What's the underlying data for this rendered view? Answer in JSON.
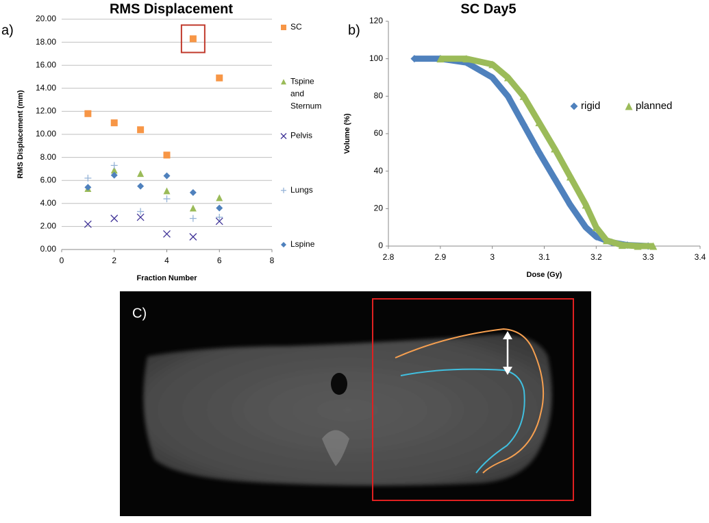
{
  "chart_data": [
    {
      "type": "scatter",
      "panel_label": "a)",
      "title": "RMS Displacement",
      "xlabel": "Fraction Number",
      "ylabel": "RMS Displacement (mm)",
      "x": [
        1,
        2,
        3,
        4,
        5,
        6
      ],
      "xlim": [
        0,
        8
      ],
      "xticks": [
        0,
        2,
        4,
        6,
        8
      ],
      "ylim": [
        0,
        20
      ],
      "yticks": [
        {
          "value": 0,
          "label": "0.00"
        },
        {
          "value": 2,
          "label": "2.00"
        },
        {
          "value": 4,
          "label": "4.00"
        },
        {
          "value": 6,
          "label": "6.00"
        },
        {
          "value": 8,
          "label": "8.00"
        },
        {
          "value": 10,
          "label": "10.00"
        },
        {
          "value": 12,
          "label": "12.00"
        },
        {
          "value": 14,
          "label": "14.00"
        },
        {
          "value": 16,
          "label": "16.00"
        },
        {
          "value": 18,
          "label": "18.00"
        },
        {
          "value": 20,
          "label": "20.00"
        }
      ],
      "grid": true,
      "legend": "right",
      "series": [
        {
          "name": "SC",
          "color": "#f79646",
          "marker": "square",
          "values": [
            11.8,
            11.0,
            10.4,
            8.2,
            18.3,
            14.9
          ]
        },
        {
          "name": "Tspine and Sternum",
          "color": "#9bbb59",
          "marker": "triangle",
          "values": [
            5.3,
            6.9,
            6.6,
            5.1,
            3.6,
            4.5
          ]
        },
        {
          "name": "Pelvis",
          "color": "#403497",
          "marker": "x",
          "values": [
            2.2,
            2.7,
            2.8,
            1.35,
            1.1,
            2.45
          ]
        },
        {
          "name": "Lungs",
          "color": "#95b3d7",
          "marker": "plus",
          "values": [
            6.2,
            7.3,
            3.3,
            4.4,
            2.7,
            2.8
          ]
        },
        {
          "name": "Lspine",
          "color": "#4f81bd",
          "marker": "diamond",
          "values": [
            5.4,
            6.45,
            5.5,
            6.4,
            4.95,
            3.6
          ]
        }
      ]
    },
    {
      "type": "line",
      "panel_label": "b)",
      "title": "SC Day5",
      "xlabel": "Dose (Gy)",
      "ylabel": "Volume (%)",
      "xlim": [
        2.8,
        3.4
      ],
      "xticks": [
        2.8,
        2.9,
        3,
        3.1,
        3.2,
        3.3,
        3.4
      ],
      "ylim": [
        0,
        120
      ],
      "yticks": [
        0,
        20,
        40,
        60,
        80,
        100,
        120
      ],
      "grid": false,
      "legend": "center-right",
      "series": [
        {
          "name": "rigid",
          "color": "#4f81bd",
          "marker": "diamond",
          "x": [
            2.85,
            2.9,
            2.95,
            3.0,
            3.03,
            3.06,
            3.09,
            3.12,
            3.15,
            3.18,
            3.2,
            3.23,
            3.26,
            3.3
          ],
          "values": [
            100,
            100,
            98,
            90,
            80,
            65,
            50,
            36,
            22,
            10,
            5,
            2,
            0.5,
            0
          ]
        },
        {
          "name": "planned",
          "color": "#9bbb59",
          "marker": "triangle",
          "x": [
            2.9,
            2.95,
            3.0,
            3.03,
            3.06,
            3.09,
            3.12,
            3.15,
            3.18,
            3.2,
            3.22,
            3.25,
            3.28,
            3.31
          ],
          "values": [
            100,
            100,
            97,
            90,
            80,
            66,
            52,
            37,
            22,
            10,
            3,
            0.5,
            0,
            0
          ]
        }
      ]
    }
  ],
  "image_panel": {
    "label": "C)"
  }
}
